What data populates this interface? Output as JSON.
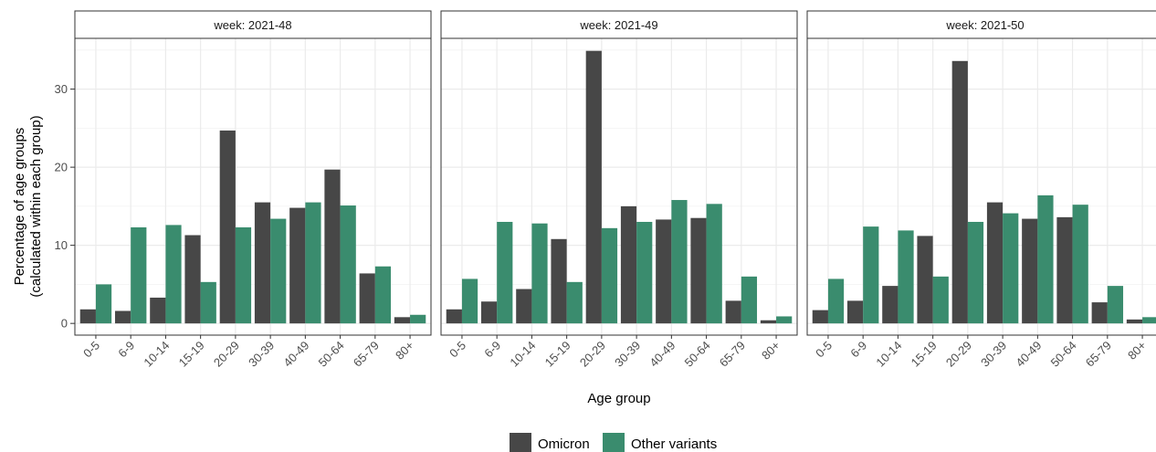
{
  "chart_data": {
    "type": "bar",
    "facet_label_prefix": "week: ",
    "facets": [
      "2021-48",
      "2021-49",
      "2021-50"
    ],
    "categories": [
      "0-5",
      "6-9",
      "10-14",
      "15-19",
      "20-29",
      "30-39",
      "40-49",
      "50-64",
      "65-79",
      "80+"
    ],
    "series": [
      {
        "name": "Omicron",
        "color": "#474747",
        "values_by_facet": [
          [
            1.8,
            1.6,
            3.3,
            11.3,
            24.7,
            15.5,
            14.8,
            19.7,
            6.4,
            0.8
          ],
          [
            1.8,
            2.8,
            4.4,
            10.8,
            34.9,
            15.0,
            13.3,
            13.5,
            2.9,
            0.4
          ],
          [
            1.7,
            2.9,
            4.8,
            11.2,
            33.6,
            15.5,
            13.4,
            13.6,
            2.7,
            0.5
          ]
        ]
      },
      {
        "name": "Other variants",
        "color": "#3a8c6e",
        "values_by_facet": [
          [
            5.0,
            12.3,
            12.6,
            5.3,
            12.3,
            13.4,
            15.5,
            15.1,
            7.3,
            1.1
          ],
          [
            5.7,
            13.0,
            12.8,
            5.3,
            12.2,
            13.0,
            15.8,
            15.3,
            6.0,
            0.9
          ],
          [
            5.7,
            12.4,
            11.9,
            6.0,
            13.0,
            14.1,
            16.4,
            15.2,
            4.8,
            0.8
          ]
        ]
      }
    ],
    "ylabel_line1": "Percentage of age groups",
    "ylabel_line2": "(calculated within each group)",
    "xlabel": "Age group",
    "yticks": [
      0,
      10,
      20,
      30
    ],
    "ylim": [
      -1.5,
      36.5
    ],
    "grid": true,
    "legend_position": "bottom"
  }
}
